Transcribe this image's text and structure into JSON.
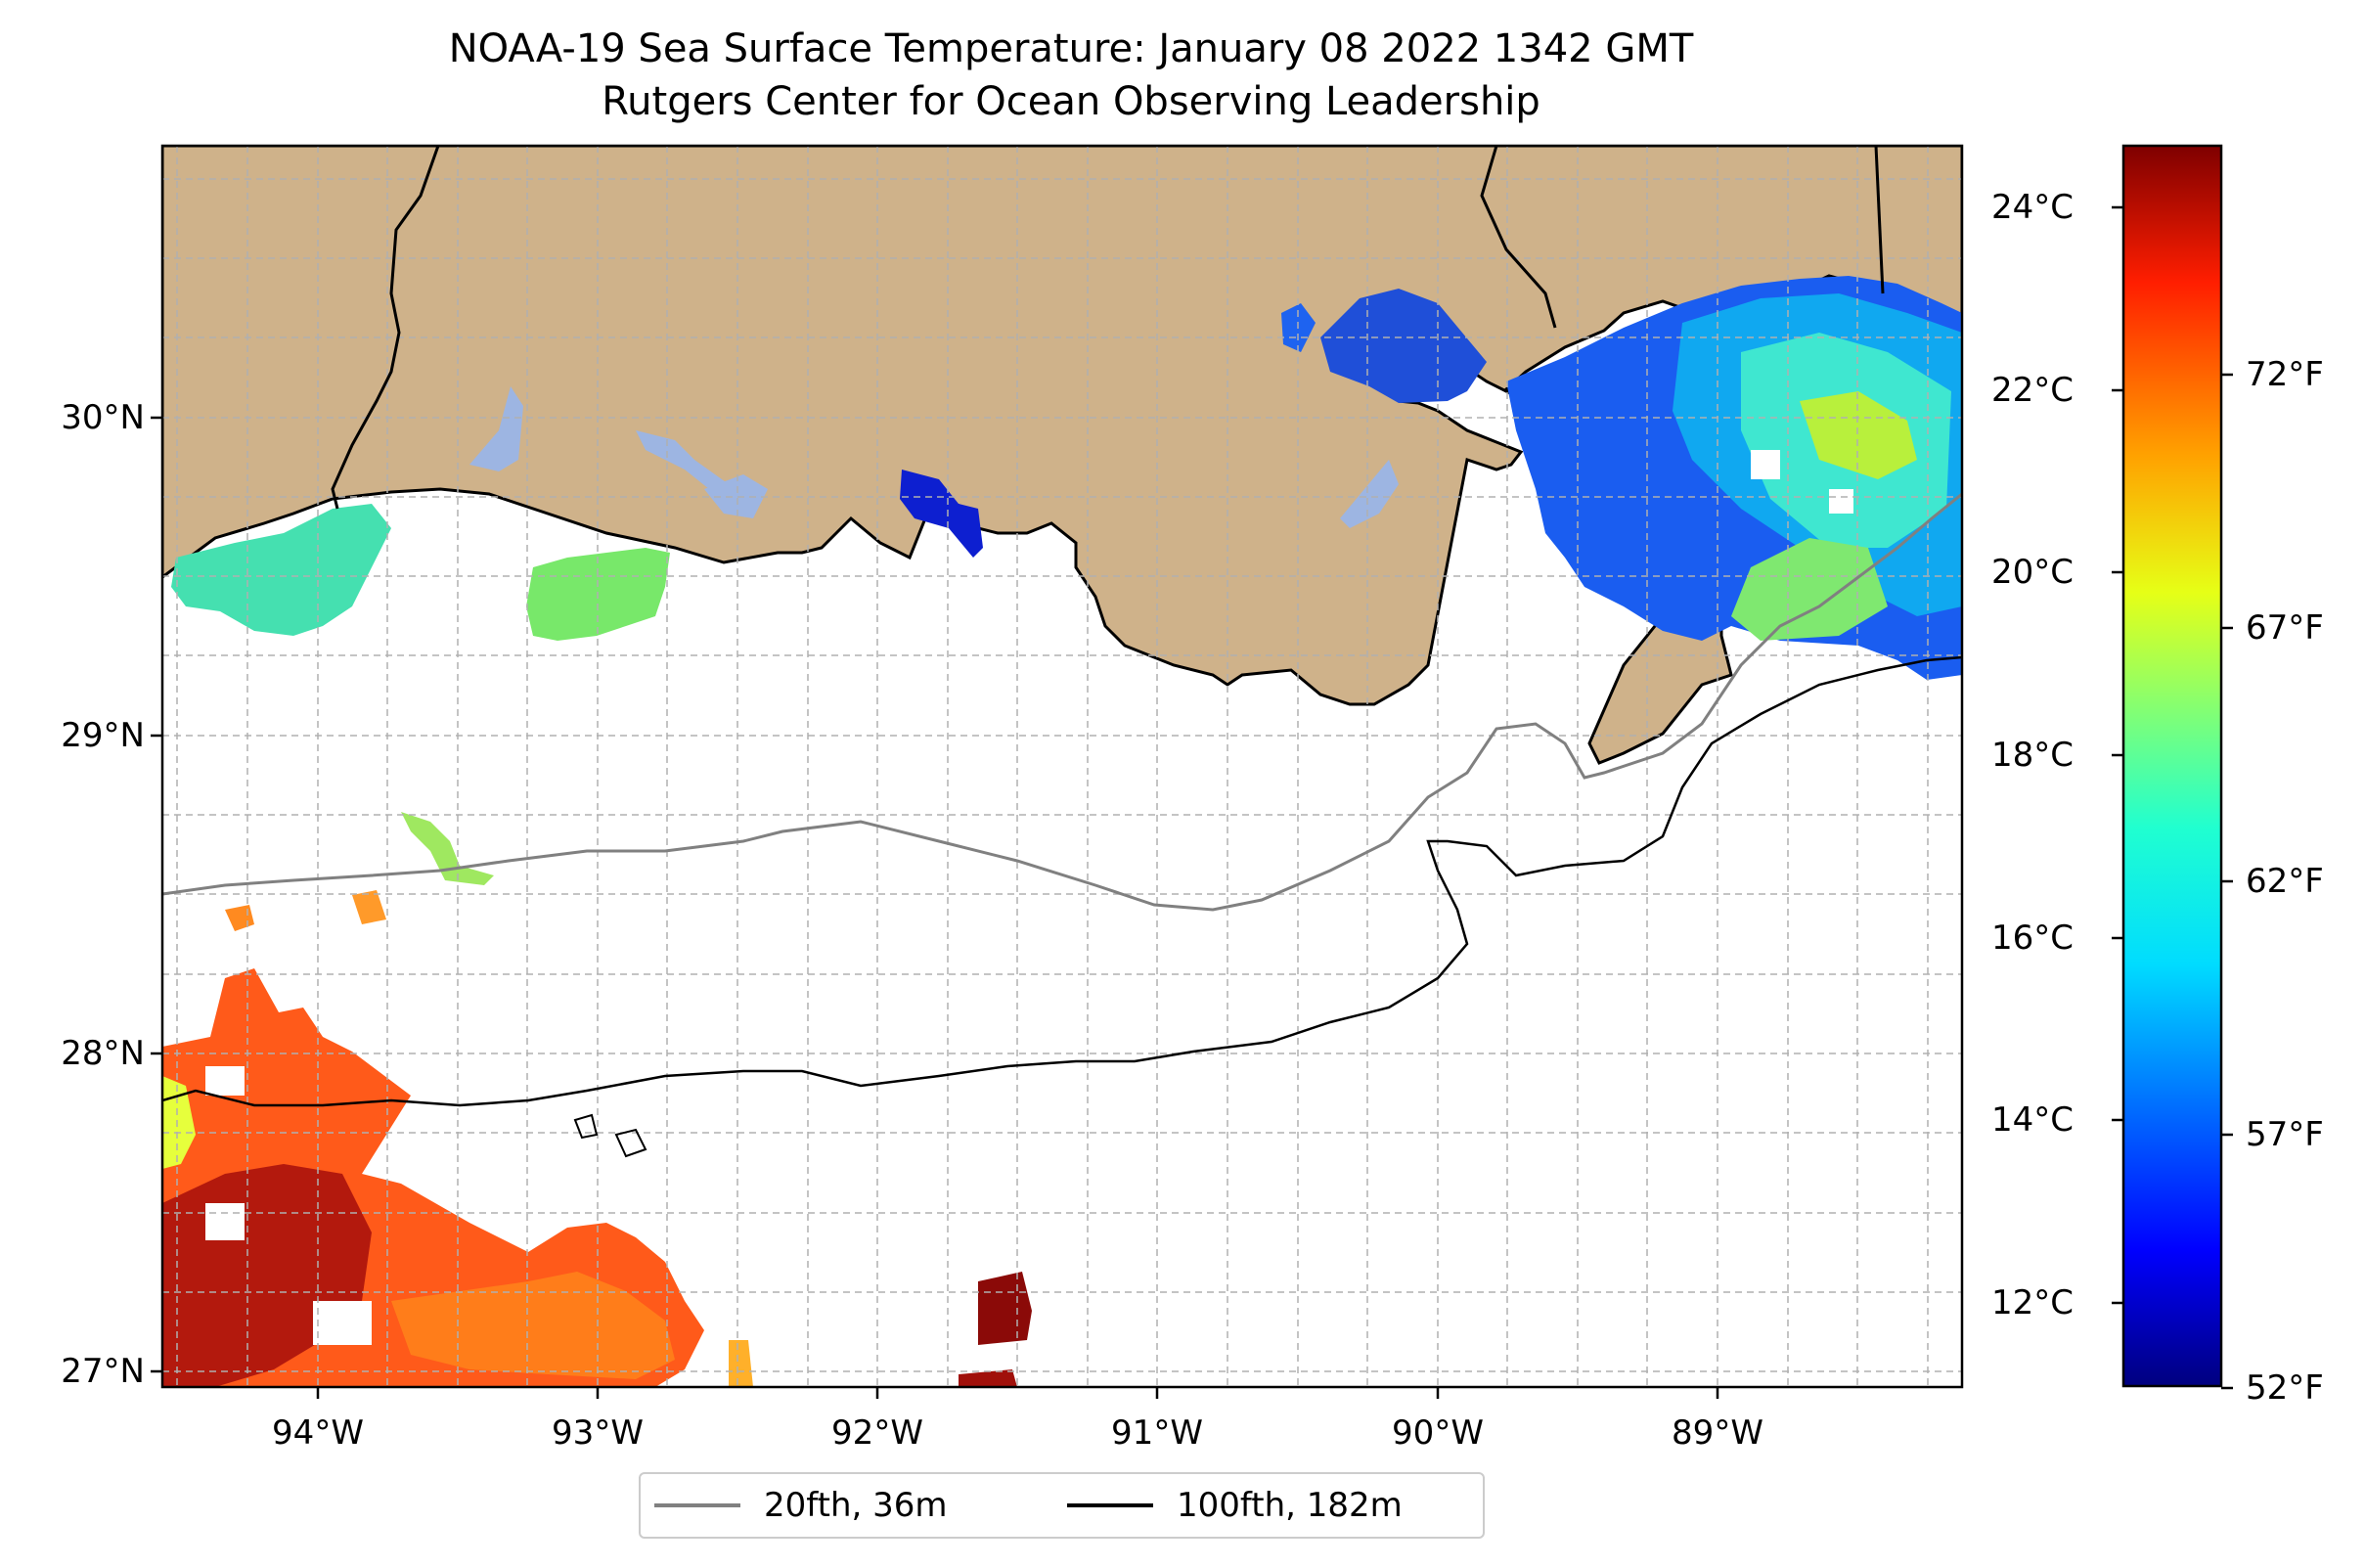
{
  "title": "NOAA-19 Sea Surface Temperature: January 08 2022 1342 GMT",
  "subtitle": "Rutgers Center for Ocean Observing Leadership",
  "map": {
    "extent": {
      "lon": [
        -94.55,
        -88.1
      ],
      "lat": [
        26.93,
        30.85
      ]
    },
    "land_color": "#cfb28a",
    "lake_color": "#9db5e2",
    "gridlines": "dashed gray every 0.25°",
    "x_ticks": [
      "94°W",
      "93°W",
      "92°W",
      "91°W",
      "90°W",
      "89°W"
    ],
    "y_ticks": [
      "30°N",
      "29°N",
      "28°N",
      "27°N"
    ]
  },
  "colorbar": {
    "colormap": "jet",
    "range_c": [
      11.1,
      24.7
    ],
    "celsius_ticks": [
      "24°C",
      "22°C",
      "20°C",
      "18°C",
      "16°C",
      "14°C",
      "12°C"
    ],
    "fahrenheit_ticks": [
      "72°F",
      "67°F",
      "62°F",
      "57°F",
      "52°F"
    ]
  },
  "legend": {
    "items": [
      {
        "label": "20fth, 36m",
        "color": "#808080"
      },
      {
        "label": "100fth, 182m",
        "color": "#000000"
      }
    ]
  }
}
